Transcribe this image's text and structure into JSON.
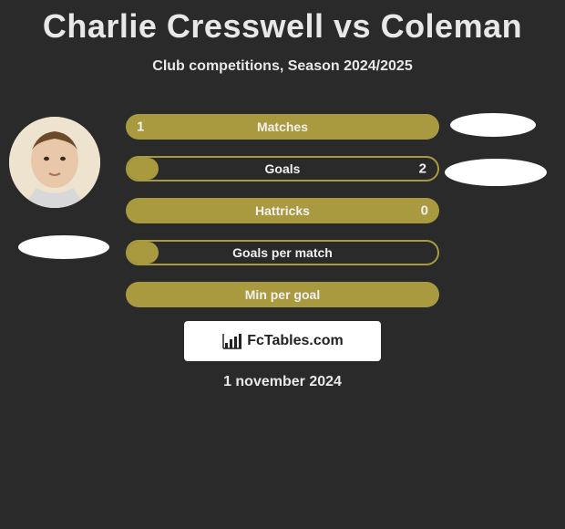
{
  "title": "Charlie Cresswell vs Coleman",
  "subtitle": "Club competitions, Season 2024/2025",
  "date": "1 november 2024",
  "bar_color": "#a99a3f",
  "background_color": "#2a2a2a",
  "text_color": "#e8e8e8",
  "title_fontsize": 36,
  "subtitle_fontsize": 16,
  "bar_label_fontsize": 14,
  "bars": [
    {
      "label": "Matches",
      "left": "1",
      "right": "",
      "style": "full",
      "fill_pct": 100
    },
    {
      "label": "Goals",
      "left": "",
      "right": "2",
      "style": "outline",
      "fill_pct": 10
    },
    {
      "label": "Hattricks",
      "left": "",
      "right": "0",
      "style": "full",
      "fill_pct": 100
    },
    {
      "label": "Goals per match",
      "left": "",
      "right": "",
      "style": "outline",
      "fill_pct": 10
    },
    {
      "label": "Min per goal",
      "left": "",
      "right": "",
      "style": "full",
      "fill_pct": 100
    }
  ],
  "logo_text": "FcTables.com"
}
